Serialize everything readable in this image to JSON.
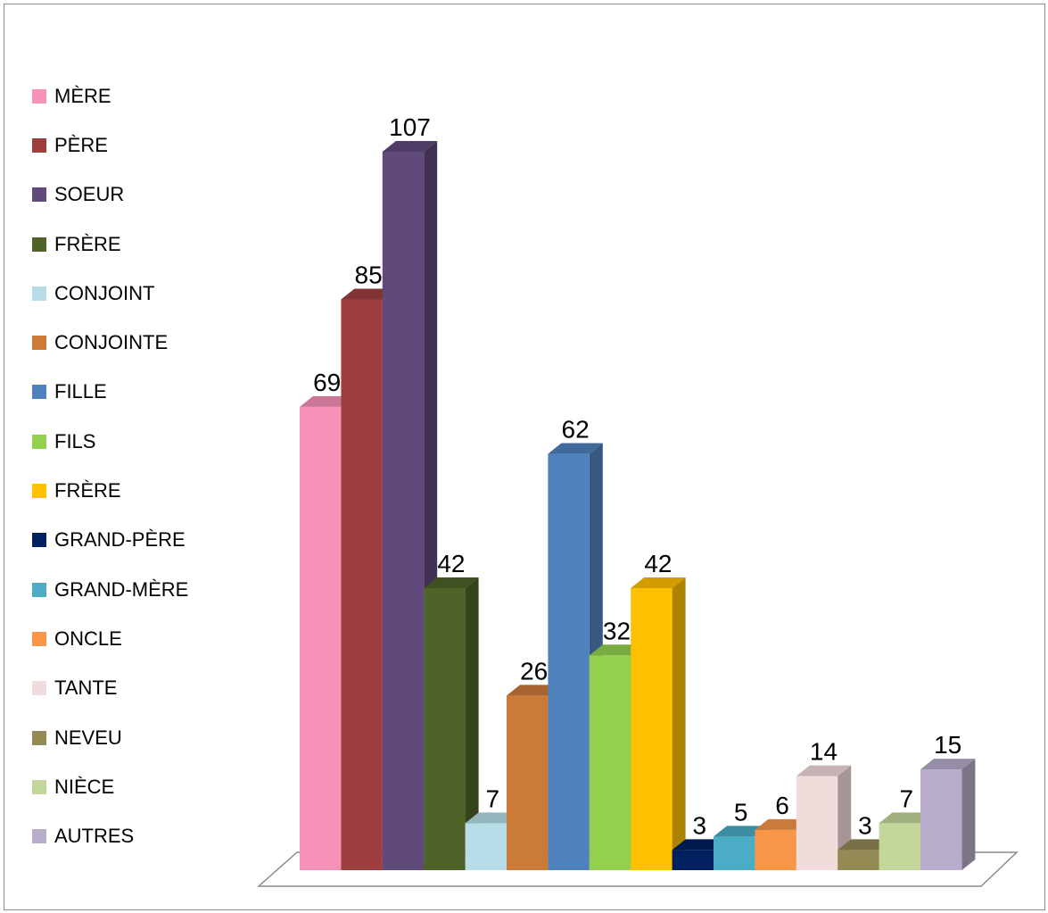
{
  "chart_data": {
    "type": "bar",
    "title": "",
    "xlabel": "",
    "ylabel": "",
    "ylim": [
      0,
      107
    ],
    "grid": false,
    "legend_position": "left",
    "style": "3d-column",
    "categories": [
      "MÈRE",
      "PÈRE",
      "SOEUR",
      "FRÈRE",
      "CONJOINT",
      "CONJOINTE",
      "FILLE",
      "FILS",
      "FRÈRE",
      "GRAND-PÈRE",
      "GRAND-MÈRE",
      "ONCLE",
      "TANTE",
      "NEVEU",
      "NIÈCE",
      "AUTRES"
    ],
    "values": [
      69,
      85,
      107,
      42,
      7,
      26,
      62,
      32,
      42,
      3,
      5,
      6,
      14,
      3,
      7,
      15
    ],
    "data_labels": [
      "69",
      "85",
      "107",
      "42",
      "7",
      "26",
      "62",
      "32",
      "42",
      "3",
      "5",
      "6",
      "14",
      "3",
      "7",
      "15"
    ],
    "colors": [
      "#f691b8",
      "#9d3f3e",
      "#604a7b",
      "#4f6228",
      "#b7dee8",
      "#cc7a38",
      "#4f81bd",
      "#92d050",
      "#ffc000",
      "#002060",
      "#4bacc6",
      "#f79646",
      "#f2dcdb",
      "#948a54",
      "#c4d79b",
      "#b7acca"
    ]
  }
}
